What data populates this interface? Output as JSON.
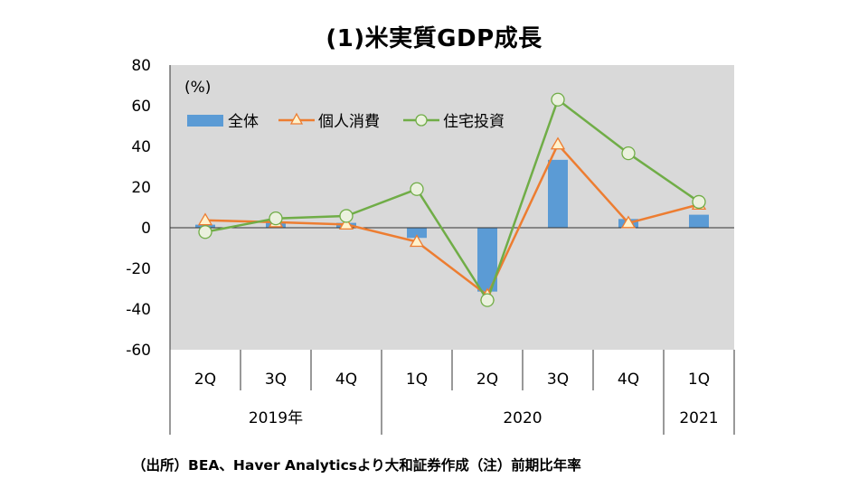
{
  "title": "(1)米実質GDP成長",
  "source_note": "（出所）BEA、Haver Analyticsより大和証券作成（注）前期比年率",
  "colors": {
    "plot_bg": "#d9d9d9",
    "bar": "#5b9bd5",
    "consumption": "#ed7d31",
    "housing": "#70ad47"
  },
  "chart_data": {
    "type": "bar",
    "title": "(1)米実質GDP成長",
    "unit_label": "(%)",
    "ylim": [
      -60,
      80
    ],
    "yticks": [
      80,
      60,
      40,
      20,
      0,
      -20,
      -40,
      -60
    ],
    "grid": false,
    "legend_position": "top-left",
    "categories": [
      "2Q",
      "3Q",
      "4Q",
      "1Q",
      "2Q",
      "3Q",
      "4Q",
      "1Q"
    ],
    "year_groups": [
      {
        "label": "2019年",
        "count": 3
      },
      {
        "label": "2020",
        "count": 4
      },
      {
        "label": "2021",
        "count": 1
      }
    ],
    "series": [
      {
        "name": "全体",
        "kind": "bar",
        "values": [
          1.5,
          2.6,
          2.4,
          -5.0,
          -31.4,
          33.4,
          4.3,
          6.4
        ]
      },
      {
        "name": "個人消費",
        "kind": "line",
        "marker": "triangle",
        "values": [
          3.7,
          2.7,
          1.6,
          -6.9,
          -33.2,
          41.0,
          2.3,
          11.4
        ]
      },
      {
        "name": "住宅投資",
        "kind": "line",
        "marker": "circle",
        "values": [
          -2.1,
          4.6,
          5.8,
          19.0,
          -35.6,
          63.0,
          36.6,
          12.7
        ]
      }
    ]
  }
}
